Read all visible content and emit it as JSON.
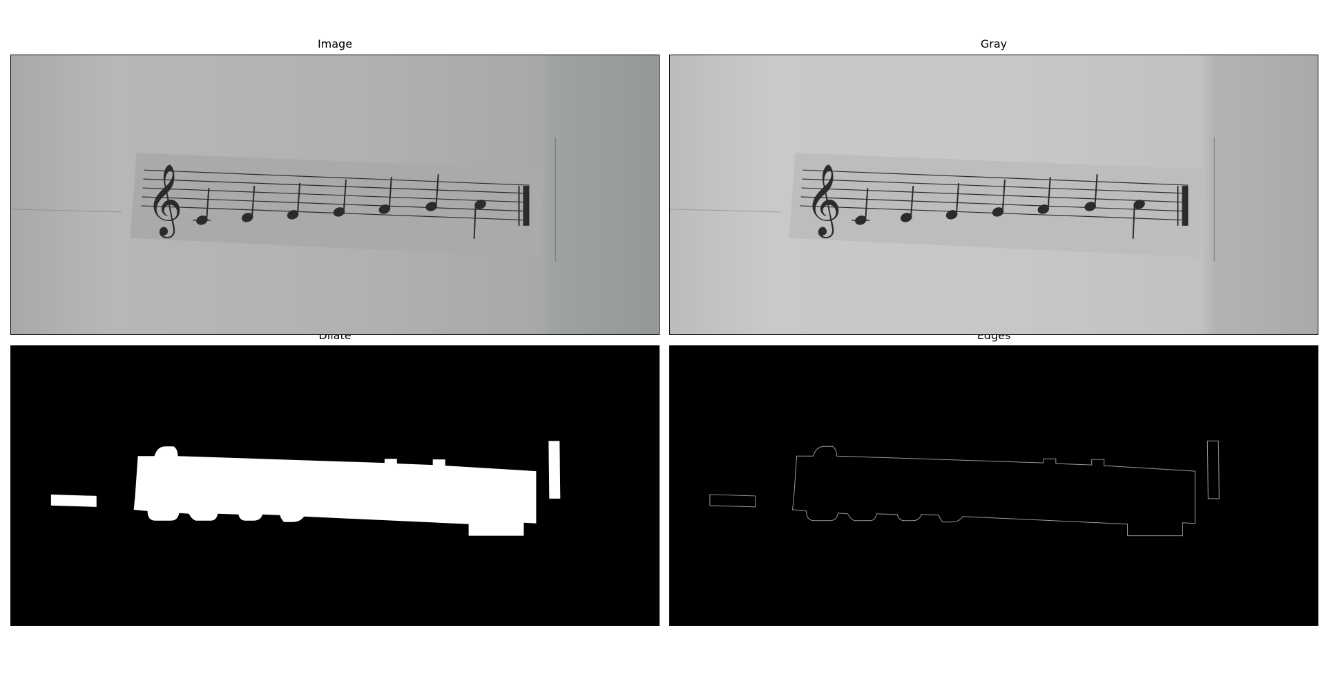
{
  "panels": {
    "image": {
      "title": "Image"
    },
    "gray": {
      "title": "Gray"
    },
    "dilate": {
      "title": "Dilate"
    },
    "edges": {
      "title": "Edges"
    }
  },
  "colors": {
    "image_background": "#b0b2b1",
    "gray_background": "#c2c2c2",
    "staff_paper": "#a9aaa9",
    "staff_paper_gray": "#bdbdbd",
    "ink": "#2b2b2b",
    "mask_black": "#000000",
    "mask_white": "#ffffff",
    "edge_line": "#9a9a9a"
  },
  "icons": [
    "treble-clef-icon"
  ]
}
